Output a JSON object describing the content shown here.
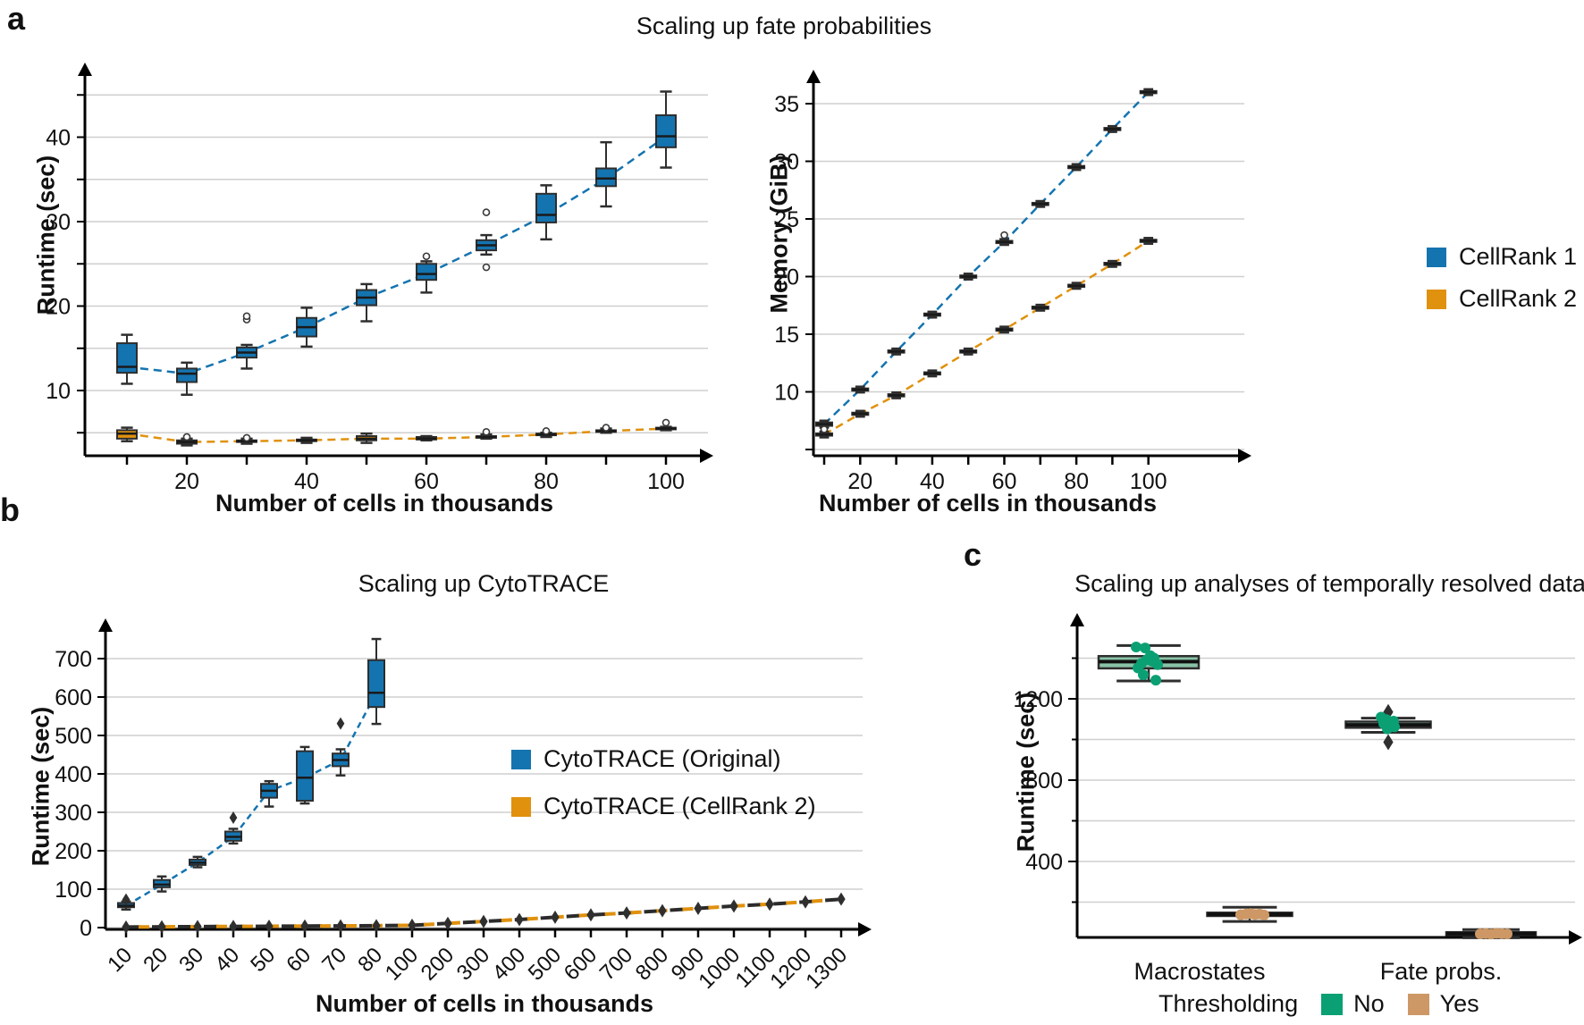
{
  "colors": {
    "cellrank1": "#1474b0",
    "cellrank2": "#e0910e",
    "no": "#0aa073",
    "no_box_fill": "#8ac4a8",
    "yes": "#cd9865",
    "yes_box_fill": "#d8a876",
    "box_edge": "#2e2e2e",
    "median": "#1a1a1a",
    "grid": "#cfcfcf",
    "axis": "#000000"
  },
  "panels": {
    "a": {
      "letter": "a",
      "legend": [
        {
          "label": "CellRank 1",
          "color": "cellrank1"
        },
        {
          "label": "CellRank 2",
          "color": "cellrank2"
        }
      ]
    },
    "b": {
      "letter": "b",
      "legend": [
        {
          "label": "CytoTRACE (Original)",
          "color": "cellrank1"
        },
        {
          "label": "CytoTRACE (CellRank 2)",
          "color": "cellrank2"
        }
      ]
    },
    "c": {
      "letter": "c",
      "legend_title": "Thresholding",
      "legend": [
        {
          "label": "No",
          "color": "no"
        },
        {
          "label": "Yes",
          "color": "yes"
        }
      ]
    }
  },
  "box_columns": [
    "x",
    "whisker_low",
    "q1",
    "median",
    "q3",
    "whisker_high",
    "outliers"
  ],
  "chart_data": [
    {
      "id": "a_runtime",
      "type": "box",
      "title": "Scaling up fate probabilities",
      "xlabel": "Number of cells in thousands",
      "ylabel": "Runtime (sec)",
      "xticks_major": [
        20,
        40,
        60,
        80,
        100
      ],
      "xticks_minor": [
        10,
        30,
        50,
        70,
        90
      ],
      "yticks_labeled": [
        10,
        20,
        30,
        40
      ],
      "gridlines": [
        5,
        10,
        15,
        20,
        25,
        30,
        35,
        40,
        45
      ],
      "ylim": [
        2,
        47
      ],
      "series": [
        {
          "name": "CellRank 1",
          "color": "cellrank1",
          "flier_shape": "circle",
          "boxes": [
            [
              10,
              10.8,
              12.1,
              12.8,
              15.6,
              16.6
            ],
            [
              20,
              9.5,
              11.0,
              12.0,
              12.6,
              13.3
            ],
            [
              30,
              12.6,
              13.9,
              14.5,
              15.1,
              15.4,
              [
                18.4,
                18.8
              ]
            ],
            [
              40,
              15.2,
              16.4,
              17.5,
              18.6,
              19.8
            ],
            [
              50,
              18.2,
              20.1,
              21.0,
              21.9,
              22.6
            ],
            [
              60,
              21.6,
              23.1,
              23.8,
              25.0,
              25.3,
              [
                25.9
              ]
            ],
            [
              70,
              26.1,
              26.6,
              27.2,
              27.8,
              28.4,
              [
                31.1,
                24.6
              ]
            ],
            [
              80,
              27.9,
              29.9,
              30.8,
              33.3,
              34.3
            ],
            [
              90,
              31.8,
              34.2,
              35.1,
              36.3,
              39.4
            ],
            [
              100,
              36.4,
              38.8,
              40.1,
              42.6,
              45.4
            ]
          ]
        },
        {
          "name": "CellRank 2",
          "color": "cellrank2",
          "flier_shape": "circle",
          "boxes": [
            [
              10,
              4.0,
              4.3,
              4.9,
              5.3,
              5.6
            ],
            [
              20,
              3.5,
              3.7,
              3.9,
              4.1,
              4.3,
              [
                4.5
              ]
            ],
            [
              30,
              3.7,
              3.9,
              4.0,
              4.1,
              4.3,
              [
                4.4
              ]
            ],
            [
              40,
              3.8,
              4.0,
              4.1,
              4.2,
              4.4
            ],
            [
              50,
              3.8,
              4.1,
              4.3,
              4.6,
              4.9
            ],
            [
              60,
              4.1,
              4.2,
              4.3,
              4.5,
              4.6
            ],
            [
              70,
              4.3,
              4.4,
              4.5,
              4.6,
              4.8,
              [
                5.1
              ]
            ],
            [
              80,
              4.5,
              4.7,
              4.8,
              4.9,
              5.0,
              [
                5.2
              ]
            ],
            [
              90,
              5.0,
              5.1,
              5.2,
              5.3,
              5.5,
              [
                5.6
              ]
            ],
            [
              100,
              5.3,
              5.4,
              5.5,
              5.6,
              5.7,
              [
                6.2
              ]
            ]
          ]
        }
      ]
    },
    {
      "id": "a_memory",
      "type": "box",
      "title": "",
      "xlabel": "Number of cells in thousands",
      "ylabel": "Memory (GiB)",
      "xticks_major": [
        20,
        40,
        60,
        80,
        100
      ],
      "xticks_minor": [
        10,
        30,
        50,
        70,
        90
      ],
      "yticks_labeled": [
        10,
        15,
        20,
        25,
        30,
        35
      ],
      "gridlines": [
        5,
        10,
        15,
        20,
        25,
        30,
        35
      ],
      "ylim": [
        4,
        37
      ],
      "series": [
        {
          "name": "CellRank 1",
          "color": "cellrank1",
          "flier_shape": "circle",
          "boxes": [
            [
              10,
              6.9,
              7.05,
              7.2,
              7.35,
              7.5,
              [
                6.6
              ]
            ],
            [
              20,
              9.95,
              10.1,
              10.2,
              10.3,
              10.45
            ],
            [
              30,
              13.25,
              13.4,
              13.5,
              13.6,
              13.75
            ],
            [
              40,
              16.45,
              16.6,
              16.7,
              16.8,
              16.95
            ],
            [
              50,
              19.75,
              19.9,
              20.0,
              20.1,
              20.25
            ],
            [
              60,
              22.75,
              22.9,
              23.0,
              23.1,
              23.25,
              [
                23.6
              ]
            ],
            [
              70,
              26.05,
              26.2,
              26.3,
              26.4,
              26.55
            ],
            [
              80,
              29.25,
              29.4,
              29.5,
              29.6,
              29.75
            ],
            [
              90,
              32.55,
              32.7,
              32.8,
              32.9,
              33.05
            ],
            [
              100,
              35.75,
              35.9,
              36.0,
              36.1,
              36.25
            ]
          ]
        },
        {
          "name": "CellRank 2",
          "color": "cellrank2",
          "flier_shape": "circle",
          "boxes": [
            [
              10,
              6.05,
              6.2,
              6.3,
              6.4,
              6.55,
              [
                6.75
              ]
            ],
            [
              20,
              7.85,
              8.0,
              8.1,
              8.2,
              8.35
            ],
            [
              30,
              9.45,
              9.6,
              9.7,
              9.8,
              9.95
            ],
            [
              40,
              11.35,
              11.5,
              11.6,
              11.7,
              11.85
            ],
            [
              50,
              13.25,
              13.4,
              13.5,
              13.6,
              13.75
            ],
            [
              60,
              15.15,
              15.3,
              15.4,
              15.5,
              15.65
            ],
            [
              70,
              17.05,
              17.2,
              17.3,
              17.4,
              17.55
            ],
            [
              80,
              18.95,
              19.1,
              19.2,
              19.3,
              19.45
            ],
            [
              90,
              20.85,
              21.0,
              21.1,
              21.2,
              21.35
            ],
            [
              100,
              22.85,
              23.0,
              23.1,
              23.2,
              23.35
            ]
          ]
        }
      ]
    },
    {
      "id": "b_cytotrace",
      "type": "box",
      "title": "Scaling up CytoTRACE",
      "xlabel": "Number of cells in thousands",
      "ylabel": "Runtime (sec)",
      "categories": [
        "10",
        "20",
        "30",
        "40",
        "50",
        "60",
        "70",
        "80",
        "100",
        "200",
        "300",
        "400",
        "500",
        "600",
        "700",
        "800",
        "900",
        "1000",
        "1100",
        "1200",
        "1300"
      ],
      "yticks_labeled": [
        0,
        100,
        200,
        300,
        400,
        500,
        600,
        700
      ],
      "gridlines": [
        0,
        100,
        200,
        300,
        400,
        500,
        600,
        700
      ],
      "ylim": [
        -20,
        780
      ],
      "series": [
        {
          "name": "CytoTRACE (Original)",
          "color": "cellrank1",
          "flier_shape": "diamond",
          "boxes": [
            [
              "10",
              47,
              53,
              57,
              64,
              68,
              [
                73
              ]
            ],
            [
              "20",
              94,
              105,
              112,
              124,
              133
            ],
            [
              "30",
              157,
              163,
              169,
              177,
              184
            ],
            [
              "40",
              219,
              226,
              236,
              250,
              257,
              [
                286
              ]
            ],
            [
              "50",
              315,
              338,
              356,
              374,
              381
            ],
            [
              "60",
              323,
              330,
              390,
              459,
              470
            ],
            [
              "70",
              396,
              420,
              436,
              453,
              464,
              [
                531
              ]
            ],
            [
              "80",
              530,
              574,
              611,
              696,
              751
            ]
          ]
        },
        {
          "name": "CytoTRACE (CellRank 2)",
          "color": "cellrank2",
          "marker": "diamond",
          "values": [
            1.5,
            2,
            2.5,
            3,
            3.5,
            4,
            4.5,
            5,
            6,
            11,
            16,
            21,
            27,
            33,
            38,
            44,
            50,
            56,
            61,
            67,
            74
          ]
        }
      ]
    },
    {
      "id": "c_temporal",
      "type": "box",
      "title": "Scaling up analyses of temporally resolved data",
      "xlabel": "",
      "ylabel": "Runtime (sec)",
      "categories": [
        "Macrostates",
        "Fate probs."
      ],
      "hue_title": "Thresholding",
      "hues": [
        "No",
        "Yes"
      ],
      "yticks_labeled": [
        400,
        800,
        1200
      ],
      "gridlines": [
        200,
        400,
        600,
        800,
        1000,
        1200,
        1400
      ],
      "ylim": [
        0,
        1550
      ],
      "boxes": [
        {
          "category": "Macrostates",
          "thresholding": "No",
          "whisker_low": 1288,
          "q1": 1350,
          "median": 1383,
          "q3": 1410,
          "whisker_high": 1462,
          "outliers": [],
          "points": [
            [
              -14,
              1455
            ],
            [
              -4,
              1450
            ],
            [
              2,
              1412
            ],
            [
              6,
              1400
            ],
            [
              -2,
              1393
            ],
            [
              4,
              1385
            ],
            [
              -8,
              1374
            ],
            [
              10,
              1368
            ],
            [
              -12,
              1352
            ],
            [
              -6,
              1318
            ],
            [
              8,
              1292
            ]
          ]
        },
        {
          "category": "Macrostates",
          "thresholding": "Yes",
          "whisker_low": 105,
          "q1": 132,
          "median": 140,
          "q3": 148,
          "whisker_high": 175,
          "outliers": [],
          "points": [
            [
              -10,
              138
            ],
            [
              -4,
              141
            ],
            [
              1,
              144
            ],
            [
              6,
              139
            ],
            [
              11,
              142
            ],
            [
              16,
              137
            ]
          ]
        },
        {
          "category": "Fate probs.",
          "thresholding": "No",
          "whisker_low": 1035,
          "q1": 1058,
          "median": 1072,
          "q3": 1088,
          "whisker_high": 1105,
          "outliers": [
            1135,
            987
          ],
          "points": [
            [
              -8,
              1110
            ],
            [
              -2,
              1098
            ],
            [
              6,
              1090
            ],
            [
              -5,
              1078
            ],
            [
              1,
              1070
            ],
            [
              7,
              1062
            ],
            [
              -1,
              1052
            ]
          ]
        },
        {
          "category": "Fate probs.",
          "thresholding": "Yes",
          "whisker_low": 25,
          "q1": 38,
          "median": 45,
          "q3": 52,
          "whisker_high": 65,
          "outliers": [],
          "points": [
            [
              -12,
              44
            ],
            [
              -6,
              46
            ],
            [
              0,
              43
            ],
            [
              6,
              47
            ],
            [
              12,
              45
            ],
            [
              18,
              44
            ]
          ]
        }
      ]
    }
  ]
}
